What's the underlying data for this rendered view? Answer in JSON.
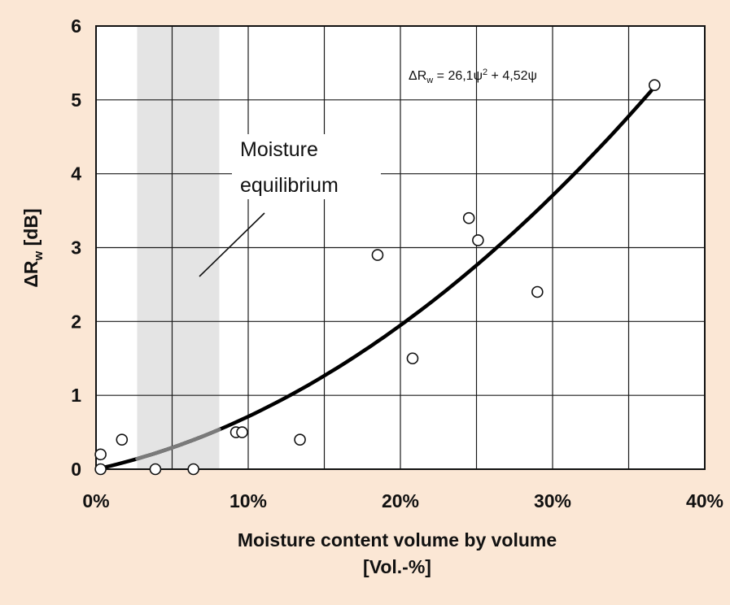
{
  "chart_data": {
    "type": "scatter",
    "xlabel_line1": "Moisture content volume by volume",
    "xlabel_line2": "[Vol.-%]",
    "ylabel_main": "ΔR",
    "ylabel_sub": "w",
    "ylabel_unit": " [dB]",
    "xlim": [
      0,
      40
    ],
    "ylim": [
      0,
      6
    ],
    "x_ticks": [
      0,
      10,
      20,
      30,
      40
    ],
    "x_tick_labels": [
      "0%",
      "10%",
      "20%",
      "30%",
      "40%"
    ],
    "x_grid": [
      0,
      5,
      10,
      15,
      20,
      25,
      30,
      35,
      40
    ],
    "y_ticks": [
      0,
      1,
      2,
      3,
      4,
      5,
      6
    ],
    "y_tick_labels": [
      "0",
      "1",
      "2",
      "3",
      "4",
      "5",
      "6"
    ],
    "grid": true,
    "shaded_band": {
      "x": [
        2.7,
        8.1
      ],
      "color": "#e4e4e4"
    },
    "annotation": {
      "line1": "Moisture",
      "line2": "equilibrium"
    },
    "series": [
      {
        "type": "scatter",
        "marker": "open-circle",
        "points": [
          {
            "x": 0.3,
            "y": 0.2
          },
          {
            "x": 0.3,
            "y": 0.0
          },
          {
            "x": 1.7,
            "y": 0.4
          },
          {
            "x": 3.9,
            "y": 0.0
          },
          {
            "x": 6.4,
            "y": 0.0
          },
          {
            "x": 9.2,
            "y": 0.5
          },
          {
            "x": 9.6,
            "y": 0.5
          },
          {
            "x": 13.4,
            "y": 0.4
          },
          {
            "x": 18.5,
            "y": 2.9
          },
          {
            "x": 20.8,
            "y": 1.5
          },
          {
            "x": 24.5,
            "y": 3.4
          },
          {
            "x": 25.1,
            "y": 3.1
          },
          {
            "x": 29.0,
            "y": 2.4
          },
          {
            "x": 36.7,
            "y": 5.2
          }
        ]
      },
      {
        "type": "line",
        "fit": {
          "a": 26.1,
          "b": 4.52,
          "x_range": [
            0.5,
            36.5
          ]
        },
        "equation_label": {
          "lhs": "ΔR",
          "lhs_sub": "w",
          "mid": " = 26,1ψ",
          "exp": "2",
          "rhs": " + 4,52ψ"
        }
      }
    ],
    "colors": {
      "background": "#fbe7d5",
      "plot_bg": "#ffffff",
      "grid": "#1a1a1a",
      "curve": "#000000",
      "curve_in_band": "#7a7a7a"
    }
  }
}
